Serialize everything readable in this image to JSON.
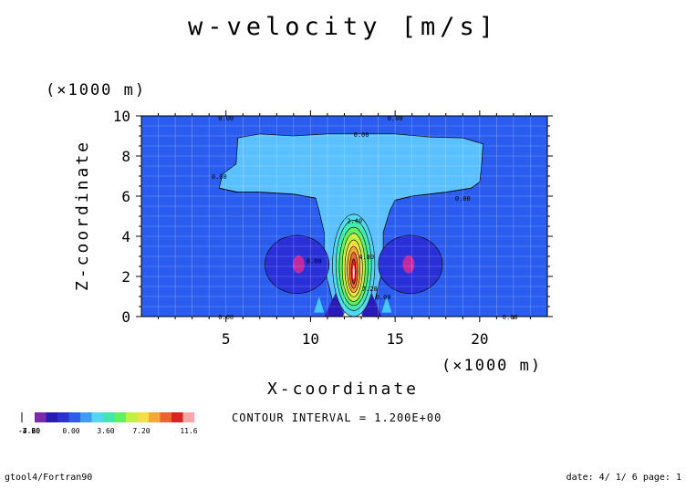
{
  "chart_data": {
    "type": "heatmap",
    "title": "w-velocity [m/s]",
    "xlabel": "X-coordinate",
    "ylabel": "Z-coordinate",
    "x_unit": "(×1000 m)",
    "y_unit": "(×1000 m)",
    "xlim": [
      0,
      24
    ],
    "ylim": [
      0,
      10
    ],
    "x_ticks": [
      5,
      10,
      15,
      20
    ],
    "y_ticks": [
      0,
      2,
      4,
      6,
      8,
      10
    ],
    "grid": true,
    "contour_interval_text": "CONTOUR INTERVAL = 1.200E+00",
    "contour_labels": [
      {
        "text": "0.00",
        "x": 5.0,
        "z": 9.9
      },
      {
        "text": "0.00",
        "x": 15.0,
        "z": 9.9
      },
      {
        "text": "0.00",
        "x": 13.0,
        "z": 9.1
      },
      {
        "text": "0.00",
        "x": 4.6,
        "z": 7.0
      },
      {
        "text": "0.00",
        "x": 19.0,
        "z": 5.9
      },
      {
        "text": "0.00",
        "x": 10.2,
        "z": 2.8
      },
      {
        "text": "2.40",
        "x": 12.6,
        "z": 4.8
      },
      {
        "text": "4.80",
        "x": 13.3,
        "z": 3.0
      },
      {
        "text": "7.20",
        "x": 13.5,
        "z": 1.4
      },
      {
        "text": "0.00",
        "x": 14.3,
        "z": 1.0
      },
      {
        "text": "0.00",
        "x": 5.0,
        "z": 0.0
      },
      {
        "text": "0.00",
        "x": 21.8,
        "z": 0.0
      }
    ],
    "colorbar": {
      "colors": [
        "#7a2aa8",
        "#2a1ab8",
        "#2a30d8",
        "#2a5cf0",
        "#3a9ef8",
        "#50d8f0",
        "#40e8b0",
        "#60f060",
        "#c0f040",
        "#f0e040",
        "#f8a830",
        "#f06030",
        "#e02020",
        "#f8a8a8"
      ],
      "labels": [
        "-7.20",
        "-4.80",
        "-3.60",
        "0.00",
        "3.60",
        "7.20",
        "11.6"
      ],
      "overlap_label": "-7.20"
    },
    "background_value_color": "#2a5cf0",
    "level_colors": {
      "n0": "#2a5cf0",
      "p1": "#5ac0ff",
      "n1": "#2a30d8",
      "n2": "#2a1ab8",
      "n3": "#c02aa0",
      "p2": "#50d8f0",
      "p3": "#40e8b0",
      "p4": "#60f060",
      "p5": "#c0f040",
      "p6": "#f0e040",
      "p7": "#f8a830",
      "p8": "#f06030",
      "p9": "#e02020"
    }
  },
  "footer": {
    "left": "gtool4/Fortran90",
    "right": "date: 4/ 1/ 6 page: 1"
  }
}
